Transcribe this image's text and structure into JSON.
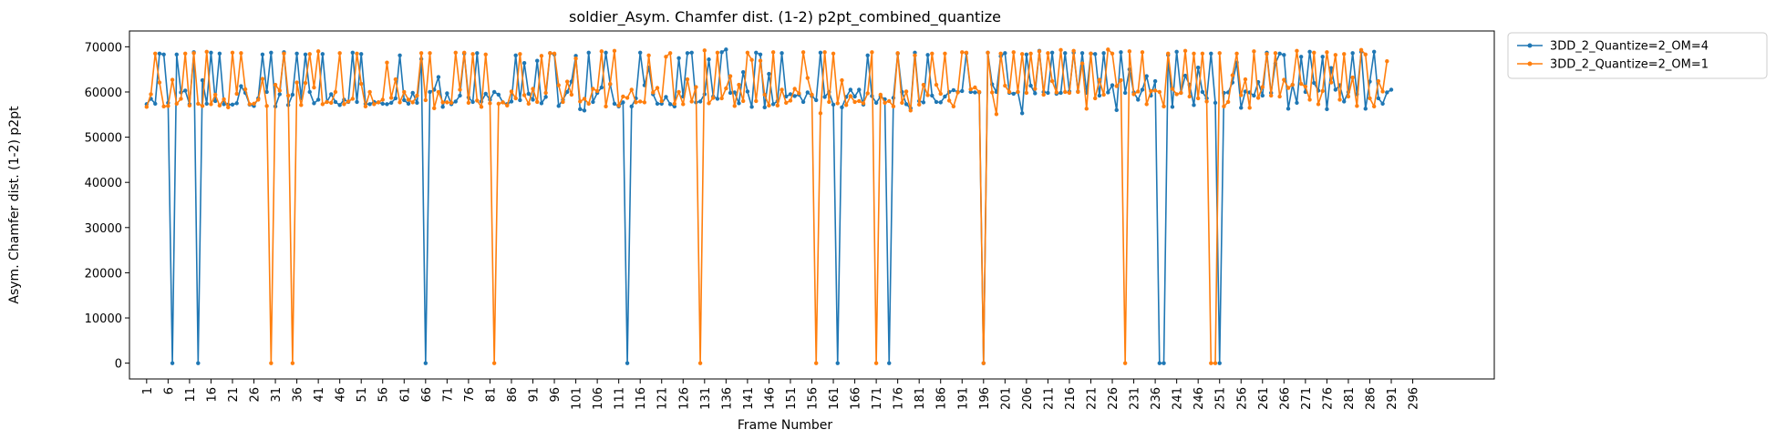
{
  "chart_data": {
    "type": "line",
    "title": "soldier_Asym. Chamfer dist. (1-2) p2pt_combined_quantize",
    "xlabel": "Frame Number",
    "ylabel": "Asym. Chamfer dist. (1-2) p2pt",
    "xlim": [
      -3,
      315
    ],
    "ylim": [
      -3500,
      73500
    ],
    "yticks": [
      0,
      10000,
      20000,
      30000,
      40000,
      50000,
      60000,
      70000
    ],
    "x_tick_start": 1,
    "x_tick_step": 5,
    "x_tick_end": 296,
    "legend_position": "outside-top-right",
    "grid": false,
    "series": [
      {
        "name": "3DD_2_Quantize=2_OM=4",
        "color": "#1f77b4",
        "x_start": 1,
        "values": [
          57300,
          58500,
          57400,
          68500,
          68300,
          57600,
          0,
          68300,
          59900,
          60300,
          57300,
          68800,
          0,
          62600,
          57400,
          68700,
          58000,
          68500,
          57300,
          57200,
          57200,
          57500,
          61300,
          59800,
          57200,
          56900,
          58600,
          68300,
          60000,
          68700,
          56800,
          59500,
          68800,
          57100,
          59400,
          68500,
          58600,
          68300,
          60000,
          57500,
          58300,
          68400,
          57800,
          59500,
          57800,
          57100,
          58300,
          57800,
          68700,
          57800,
          68400,
          57400,
          57300,
          57800,
          57700,
          57400,
          57300,
          57600,
          58600,
          68100,
          58200,
          57400,
          59800,
          57600,
          67300,
          0,
          60000,
          60500,
          63300,
          56700,
          59700,
          57300,
          57900,
          59200,
          68500,
          58800,
          57800,
          68600,
          57900,
          59600,
          58300,
          60000,
          59400,
          57700,
          57300,
          57900,
          68100,
          58200,
          66400,
          59600,
          58300,
          66900,
          57500,
          58900,
          68600,
          68300,
          56900,
          58300,
          60000,
          62300,
          68000,
          56200,
          55900,
          68700,
          57800,
          59800,
          61000,
          68700,
          61700,
          57400,
          56800,
          57700,
          0,
          56800,
          58600,
          68700,
          61500,
          65400,
          59500,
          57400,
          57400,
          58900,
          57300,
          56800,
          67500,
          59000,
          68600,
          68700,
          57700,
          57900,
          59500,
          67200,
          59000,
          58500,
          68800,
          69400,
          59800,
          59900,
          57500,
          64400,
          60100,
          56700,
          68700,
          68300,
          56600,
          64000,
          57300,
          58000,
          68600,
          59000,
          59500,
          59100,
          59400,
          57800,
          59900,
          59100,
          58200,
          68700,
          58900,
          60000,
          57200,
          0,
          56600,
          58900,
          60500,
          59000,
          60500,
          57200,
          68100,
          59100,
          57600,
          59000,
          58400,
          0,
          58700,
          68500,
          60000,
          57300,
          56400,
          68700,
          58000,
          57700,
          68200,
          59200,
          57800,
          57700,
          59000,
          60000,
          60400,
          60000,
          60200,
          68600,
          60000,
          59900,
          59900,
          0,
          68700,
          61700,
          60000,
          67900,
          68600,
          59800,
          59600,
          60000,
          55300,
          68300,
          61400,
          59700,
          69100,
          60000,
          59800,
          68700,
          59600,
          59800,
          68600,
          60100,
          68700,
          60100,
          68600,
          59800,
          68500,
          68400,
          59200,
          68600,
          59900,
          61500,
          56000,
          68800,
          59800,
          65000,
          59900,
          58300,
          60500,
          63500,
          59200,
          62400,
          0,
          0,
          68200,
          56700,
          68900,
          59800,
          63600,
          61600,
          57100,
          65400,
          60000,
          58600,
          68500,
          57600,
          0,
          59800,
          59900,
          62100,
          66500,
          56500,
          60100,
          59900,
          59200,
          62200,
          59200,
          68700,
          59800,
          66300,
          68500,
          68200,
          56300,
          61600,
          57600,
          67800,
          60000,
          68900,
          62000,
          60300,
          67800,
          56200,
          65300,
          60500,
          61500,
          57900,
          60000,
          68600,
          59500,
          68900,
          56300,
          62300,
          68900,
          58600,
          57400,
          59900,
          60500
        ]
      },
      {
        "name": "3DD_2_Quantize=2_OM=1",
        "color": "#ff7f0e",
        "x_start": 1,
        "values": [
          56700,
          59500,
          68500,
          62100,
          56800,
          56900,
          62700,
          57400,
          58500,
          68500,
          57000,
          68600,
          57400,
          56900,
          68900,
          57300,
          59400,
          57000,
          58400,
          56600,
          68700,
          59600,
          68600,
          60600,
          57300,
          57400,
          58300,
          62900,
          56900,
          0,
          61600,
          60300,
          68500,
          59200,
          0,
          62100,
          57100,
          62000,
          68400,
          61000,
          69000,
          57300,
          57800,
          57600,
          60000,
          68600,
          57300,
          57900,
          58500,
          68500,
          61800,
          56800,
          60000,
          57300,
          57700,
          58300,
          66500,
          58700,
          62800,
          57700,
          60000,
          58300,
          57700,
          59200,
          68600,
          58200,
          68600,
          56400,
          60000,
          57700,
          57700,
          57600,
          68700,
          60500,
          68700,
          57600,
          68400,
          58100,
          56700,
          68300,
          57500,
          0,
          57400,
          57700,
          57000,
          60100,
          58600,
          68400,
          59300,
          57400,
          60700,
          57800,
          68000,
          59800,
          68600,
          68500,
          61500,
          57800,
          62300,
          59400,
          67400,
          57900,
          58500,
          57400,
          60700,
          60200,
          69000,
          56800,
          61800,
          69100,
          57000,
          59000,
          58700,
          60500,
          57700,
          57900,
          57700,
          68100,
          59900,
          60900,
          58000,
          67800,
          68600,
          57400,
          60000,
          57300,
          62800,
          57900,
          61100,
          0,
          69200,
          57500,
          58700,
          68700,
          58600,
          60800,
          63500,
          56900,
          61600,
          58000,
          68700,
          67100,
          58000,
          66900,
          59400,
          57000,
          68800,
          57000,
          60500,
          57600,
          58100,
          60700,
          59700,
          68800,
          63100,
          59400,
          0,
          55300,
          68800,
          57800,
          68500,
          57500,
          62600,
          57100,
          59100,
          57800,
          58000,
          57500,
          59700,
          68800,
          0,
          59400,
          57600,
          58000,
          56800,
          68600,
          57600,
          60100,
          55900,
          68100,
          57200,
          61600,
          59300,
          68500,
          61600,
          59600,
          68500,
          58100,
          56800,
          59900,
          68800,
          68700,
          60600,
          61000,
          60000,
          0,
          68700,
          59900,
          55100,
          68500,
          61400,
          60000,
          68800,
          60000,
          68400,
          59800,
          68500,
          60700,
          69000,
          59400,
          68600,
          62400,
          59900,
          69300,
          60000,
          59800,
          69100,
          60000,
          66300,
          56300,
          68500,
          58600,
          62700,
          59400,
          69400,
          68500,
          61300,
          62600,
          0,
          69000,
          59500,
          60100,
          68800,
          57300,
          60200,
          60300,
          60000,
          56800,
          68500,
          60700,
          59500,
          59800,
          69100,
          59000,
          68500,
          58600,
          68500,
          57900,
          0,
          0,
          68600,
          56800,
          57800,
          63700,
          68500,
          59300,
          62800,
          56500,
          69000,
          58700,
          61100,
          68400,
          59200,
          68600,
          59000,
          62700,
          60900,
          61600,
          69100,
          61800,
          61200,
          58300,
          68700,
          57300,
          60200,
          68800,
          62100,
          68200,
          58300,
          68400,
          59000,
          63200,
          56900,
          69300,
          68300,
          58600,
          56800,
          62400,
          60100,
          66800
        ]
      }
    ]
  }
}
